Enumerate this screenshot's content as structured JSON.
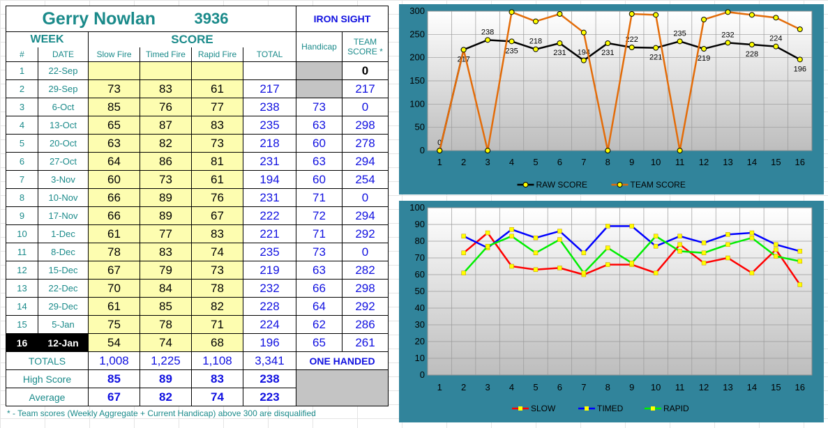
{
  "shooter": {
    "name": "Gerry Nowlan",
    "id": "3936",
    "class": "IRON SIGHT"
  },
  "headers": {
    "week": "WEEK",
    "score": "SCORE",
    "handicap": "Handicap",
    "team_line1": "TEAM",
    "team_line2": "SCORE *",
    "num": "#",
    "date": "DATE",
    "slow": "Slow Fire",
    "timed": "Timed Fire",
    "rapid": "Rapid Fire",
    "total": "TOTAL"
  },
  "weeks": [
    {
      "num": "1",
      "date": "22-Sep",
      "slow": "",
      "timed": "",
      "rapid": "",
      "total": "",
      "handicap": "",
      "team": "0"
    },
    {
      "num": "2",
      "date": "29-Sep",
      "slow": "73",
      "timed": "83",
      "rapid": "61",
      "total": "217",
      "handicap": "",
      "team": "217"
    },
    {
      "num": "3",
      "date": "6-Oct",
      "slow": "85",
      "timed": "76",
      "rapid": "77",
      "total": "238",
      "handicap": "73",
      "team": "0"
    },
    {
      "num": "4",
      "date": "13-Oct",
      "slow": "65",
      "timed": "87",
      "rapid": "83",
      "total": "235",
      "handicap": "63",
      "team": "298"
    },
    {
      "num": "5",
      "date": "20-Oct",
      "slow": "63",
      "timed": "82",
      "rapid": "73",
      "total": "218",
      "handicap": "60",
      "team": "278"
    },
    {
      "num": "6",
      "date": "27-Oct",
      "slow": "64",
      "timed": "86",
      "rapid": "81",
      "total": "231",
      "handicap": "63",
      "team": "294"
    },
    {
      "num": "7",
      "date": "3-Nov",
      "slow": "60",
      "timed": "73",
      "rapid": "61",
      "total": "194",
      "handicap": "60",
      "team": "254"
    },
    {
      "num": "8",
      "date": "10-Nov",
      "slow": "66",
      "timed": "89",
      "rapid": "76",
      "total": "231",
      "handicap": "71",
      "team": "0"
    },
    {
      "num": "9",
      "date": "17-Nov",
      "slow": "66",
      "timed": "89",
      "rapid": "67",
      "total": "222",
      "handicap": "72",
      "team": "294"
    },
    {
      "num": "10",
      "date": "1-Dec",
      "slow": "61",
      "timed": "77",
      "rapid": "83",
      "total": "221",
      "handicap": "71",
      "team": "292"
    },
    {
      "num": "11",
      "date": "8-Dec",
      "slow": "78",
      "timed": "83",
      "rapid": "74",
      "total": "235",
      "handicap": "73",
      "team": "0"
    },
    {
      "num": "12",
      "date": "15-Dec",
      "slow": "67",
      "timed": "79",
      "rapid": "73",
      "total": "219",
      "handicap": "63",
      "team": "282"
    },
    {
      "num": "13",
      "date": "22-Dec",
      "slow": "70",
      "timed": "84",
      "rapid": "78",
      "total": "232",
      "handicap": "66",
      "team": "298"
    },
    {
      "num": "14",
      "date": "29-Dec",
      "slow": "61",
      "timed": "85",
      "rapid": "82",
      "total": "228",
      "handicap": "64",
      "team": "292"
    },
    {
      "num": "15",
      "date": "5-Jan",
      "slow": "75",
      "timed": "78",
      "rapid": "71",
      "total": "224",
      "handicap": "62",
      "team": "286"
    },
    {
      "num": "16",
      "date": "12-Jan",
      "slow": "54",
      "timed": "74",
      "rapid": "68",
      "total": "196",
      "handicap": "65",
      "team": "261"
    }
  ],
  "totals": {
    "label": "TOTALS",
    "slow": "1,008",
    "timed": "1,225",
    "rapid": "1,108",
    "total": "3,341",
    "note": "ONE HANDED"
  },
  "high_score": {
    "label": "High Score",
    "slow": "85",
    "timed": "89",
    "rapid": "83",
    "total": "238"
  },
  "average": {
    "label": "Average",
    "slow": "67",
    "timed": "82",
    "rapid": "74",
    "total": "223"
  },
  "footnote": "* - Team scores (Weekly Aggregate + Current Handicap) above 300 are disqualified",
  "colors": {
    "chart_bg": "#31849b",
    "raw": "#000000",
    "team": "#e36c09",
    "slow": "#ff0000",
    "timed": "#0000ff",
    "rapid": "#00ee00",
    "marker": "#ffff00"
  },
  "chart_data": [
    {
      "type": "line",
      "x": [
        1,
        2,
        3,
        4,
        5,
        6,
        7,
        8,
        9,
        10,
        11,
        12,
        13,
        14,
        15,
        16
      ],
      "xticks": [
        "1",
        "2",
        "3",
        "4",
        "5",
        "6",
        "7",
        "8",
        "9",
        "10",
        "11",
        "12",
        "13",
        "14",
        "15",
        "16"
      ],
      "yticks": [
        "0",
        "50",
        "100",
        "150",
        "200",
        "250",
        "300"
      ],
      "ylim": [
        0,
        300
      ],
      "grid": true,
      "legend": "bottom",
      "series": [
        {
          "name": "RAW SCORE",
          "values": [
            0,
            217,
            238,
            235,
            218,
            231,
            194,
            231,
            222,
            221,
            235,
            219,
            232,
            228,
            224,
            196
          ],
          "labels": [
            "0",
            "217",
            "238",
            "235",
            "218",
            "231",
            "194",
            "231",
            "222",
            "221",
            "235",
            "219",
            "232",
            "228",
            "224",
            "196"
          ]
        },
        {
          "name": "TEAM SCORE",
          "values": [
            0,
            217,
            0,
            298,
            278,
            294,
            254,
            0,
            294,
            292,
            0,
            282,
            298,
            292,
            286,
            261
          ]
        }
      ]
    },
    {
      "type": "line",
      "x": [
        1,
        2,
        3,
        4,
        5,
        6,
        7,
        8,
        9,
        10,
        11,
        12,
        13,
        14,
        15,
        16
      ],
      "xticks": [
        "1",
        "2",
        "3",
        "4",
        "5",
        "6",
        "7",
        "8",
        "9",
        "10",
        "11",
        "12",
        "13",
        "14",
        "15",
        "16"
      ],
      "yticks": [
        "0",
        "10",
        "20",
        "30",
        "40",
        "50",
        "60",
        "70",
        "80",
        "90",
        "100"
      ],
      "ylim": [
        0,
        100
      ],
      "grid": true,
      "legend": "bottom",
      "series": [
        {
          "name": "SLOW",
          "values": [
            null,
            73,
            85,
            65,
            63,
            64,
            60,
            66,
            66,
            61,
            78,
            67,
            70,
            61,
            75,
            54
          ]
        },
        {
          "name": "TIMED",
          "values": [
            null,
            83,
            76,
            87,
            82,
            86,
            73,
            89,
            89,
            77,
            83,
            79,
            84,
            85,
            78,
            74
          ]
        },
        {
          "name": "RAPID",
          "values": [
            null,
            61,
            77,
            83,
            73,
            81,
            61,
            76,
            67,
            83,
            74,
            73,
            78,
            82,
            71,
            68
          ]
        }
      ]
    }
  ]
}
